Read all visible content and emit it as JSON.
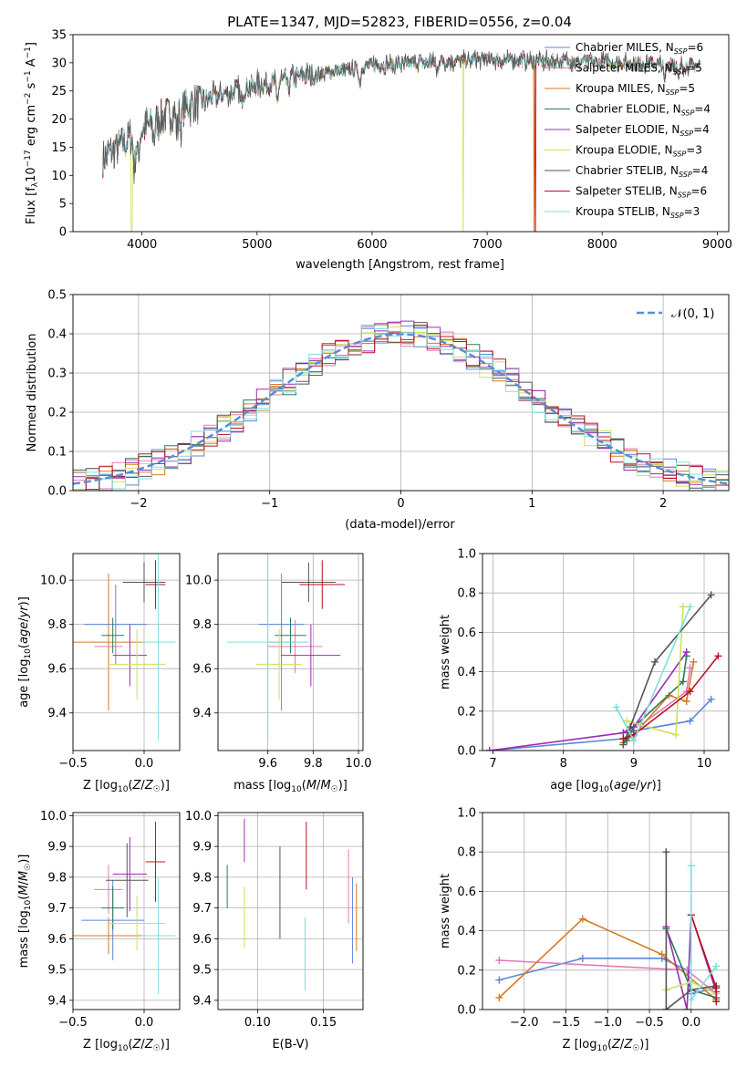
{
  "title": "PLATE=1347, MJD=52823, FIBERID=0556, z=0.04",
  "colors": {
    "Chabrier MILES": "#5b86d8",
    "Salpeter MILES": "#e27bb5",
    "Kroupa MILES": "#d97a22",
    "Chabrier ELODIE": "#2d7a5b",
    "Salpeter ELODIE": "#9b2db3",
    "Kroupa ELODIE": "#c9e35c",
    "Chabrier STELIB": "#555555",
    "Salpeter STELIB": "#bb1122",
    "Kroupa STELIB": "#80dede"
  },
  "chart_data": [
    {
      "id": "spectrum",
      "type": "line",
      "title": "PLATE=1347, MJD=52823, FIBERID=0556, z=0.04",
      "xlabel": "wavelength [Angstrom, rest frame]",
      "ylabel": "Flux [f_λ 10^-17 erg cm^-2 s^-1 A^-1]",
      "xlim": [
        3400,
        9100
      ],
      "ylim": [
        0,
        35
      ],
      "xticks": [
        4000,
        5000,
        6000,
        7000,
        8000,
        9000
      ],
      "yticks": [
        0,
        5,
        10,
        15,
        20,
        25,
        30,
        35
      ],
      "grid": false,
      "legend_position": "top-right",
      "legend": [
        {
          "model": "Chabrier MILES",
          "prefix": "Chabrier MILES, N",
          "nssp": "6"
        },
        {
          "model": "Salpeter MILES",
          "prefix": "Salpeter MILES, N",
          "nssp": "5"
        },
        {
          "model": "Kroupa MILES",
          "prefix": "Kroupa MILES, N",
          "nssp": "5"
        },
        {
          "model": "Chabrier ELODIE",
          "prefix": "Chabrier ELODIE, N",
          "nssp": "4"
        },
        {
          "model": "Salpeter ELODIE",
          "prefix": "Salpeter ELODIE, N",
          "nssp": "4"
        },
        {
          "model": "Kroupa ELODIE",
          "prefix": "Kroupa ELODIE, N",
          "nssp": "3"
        },
        {
          "model": "Chabrier STELIB",
          "prefix": "Chabrier STELIB, N",
          "nssp": "4"
        },
        {
          "model": "Salpeter STELIB",
          "prefix": "Salpeter STELIB, N",
          "nssp": "6"
        },
        {
          "model": "Kroupa STELIB",
          "prefix": "Kroupa STELIB, N",
          "nssp": "3"
        }
      ],
      "continuum": [
        [
          3660,
          13
        ],
        [
          3800,
          15
        ],
        [
          3950,
          17.5
        ],
        [
          4150,
          20
        ],
        [
          4400,
          22.5
        ],
        [
          4700,
          24.5
        ],
        [
          5000,
          26
        ],
        [
          5300,
          27.2
        ],
        [
          5600,
          28.2
        ],
        [
          6000,
          29.5
        ],
        [
          6500,
          30.2
        ],
        [
          7000,
          30.5
        ],
        [
          7500,
          30.3
        ],
        [
          8000,
          30.1
        ],
        [
          8500,
          29.8
        ],
        [
          8850,
          29.5
        ]
      ],
      "absorption_features": [
        [
          3934,
          -6
        ],
        [
          3968,
          -5
        ],
        [
          4102,
          -3
        ],
        [
          4304,
          -4
        ],
        [
          4340,
          -3
        ],
        [
          4861,
          -3
        ],
        [
          5175,
          -4
        ],
        [
          5270,
          -2
        ],
        [
          5893,
          -3
        ],
        [
          6563,
          -2
        ],
        [
          8542,
          -3
        ],
        [
          8662,
          -3
        ]
      ],
      "model_drops": [
        {
          "model": "Kroupa ELODIE",
          "x": 3910
        },
        {
          "model": "Kroupa ELODIE",
          "x": 6790
        },
        {
          "model": "Kroupa MILES",
          "x": 7410
        },
        {
          "model": "Salpeter STELIB",
          "x": 7420
        }
      ]
    },
    {
      "id": "residuals",
      "type": "histogram",
      "xlabel": "(data-model)/error",
      "ylabel": "Normed distribution",
      "xlim": [
        -2.5,
        2.5
      ],
      "ylim": [
        0,
        0.5
      ],
      "xticks": [
        -2,
        -1,
        0,
        1,
        2
      ],
      "yticks": [
        0,
        0.1,
        0.2,
        0.3,
        0.4,
        0.5
      ],
      "grid": true,
      "bin_edges_start": -2.5,
      "bin_width": 0.1,
      "reference_curve": {
        "label": "𝒩(0, 1)",
        "mean": 0,
        "sigma": 1,
        "color": "#5b8bd6"
      },
      "legend_position": "top-right"
    },
    {
      "id": "age_vs_Z",
      "type": "errorbar",
      "xlabel": "Z [log10(Z/Z☉)]",
      "ylabel": "age  [log10(age/yr)]",
      "xlim": [
        -0.5,
        0.25
      ],
      "ylim": [
        9.23,
        10.12
      ],
      "xticks": [
        -0.5,
        0.0
      ],
      "yticks": [
        9.4,
        9.6,
        9.8,
        10.0
      ],
      "grid": true,
      "points": [
        {
          "model": "Chabrier MILES",
          "x": -0.2,
          "xerr": 0.22,
          "y": 9.8,
          "yerr": 0.18
        },
        {
          "model": "Salpeter MILES",
          "x": -0.25,
          "xerr": 0.1,
          "y": 9.7,
          "yerr": 0.12
        },
        {
          "model": "Kroupa MILES",
          "x": -0.25,
          "xerr": 0.25,
          "y": 9.72,
          "yerr": 0.31
        },
        {
          "model": "Chabrier ELODIE",
          "x": -0.22,
          "xerr": 0.08,
          "y": 9.75,
          "yerr": 0.08
        },
        {
          "model": "Salpeter ELODIE",
          "x": -0.1,
          "xerr": 0.12,
          "y": 9.66,
          "yerr": 0.14
        },
        {
          "model": "Kroupa ELODIE",
          "x": -0.05,
          "xerr": 0.2,
          "y": 9.62,
          "yerr": 0.16
        },
        {
          "model": "Chabrier STELIB",
          "x": 0.0,
          "xerr": 0.15,
          "y": 9.99,
          "yerr": 0.09
        },
        {
          "model": "Salpeter STELIB",
          "x": 0.08,
          "xerr": 0.07,
          "y": 9.98,
          "yerr": 0.11
        },
        {
          "model": "Kroupa STELIB",
          "x": 0.1,
          "xerr": 0.12,
          "y": 9.72,
          "yerr": 0.44
        }
      ]
    },
    {
      "id": "age_vs_mass",
      "type": "errorbar",
      "xlabel": "mass [log10(M/M☉)]",
      "ylabel": "",
      "xlim": [
        9.38,
        10.02
      ],
      "ylim": [
        9.23,
        10.12
      ],
      "xticks": [
        9.6,
        9.8,
        10.0
      ],
      "yticks": [
        9.4,
        9.6,
        9.8,
        10.0
      ],
      "grid": true,
      "points": [
        {
          "model": "Chabrier MILES",
          "x": 9.66,
          "xerr": 0.1,
          "y": 9.8,
          "yerr": 0.18
        },
        {
          "model": "Salpeter MILES",
          "x": 9.72,
          "xerr": 0.12,
          "y": 9.7,
          "yerr": 0.12
        },
        {
          "model": "Kroupa MILES",
          "x": 9.66,
          "xerr": 0.06,
          "y": 9.72,
          "yerr": 0.31
        },
        {
          "model": "Chabrier ELODIE",
          "x": 9.7,
          "xerr": 0.07,
          "y": 9.75,
          "yerr": 0.08
        },
        {
          "model": "Salpeter ELODIE",
          "x": 9.79,
          "xerr": 0.13,
          "y": 9.66,
          "yerr": 0.14
        },
        {
          "model": "Kroupa ELODIE",
          "x": 9.65,
          "xerr": 0.1,
          "y": 9.62,
          "yerr": 0.16
        },
        {
          "model": "Chabrier STELIB",
          "x": 9.78,
          "xerr": 0.12,
          "y": 9.99,
          "yerr": 0.09
        },
        {
          "model": "Salpeter STELIB",
          "x": 9.84,
          "xerr": 0.1,
          "y": 9.98,
          "yerr": 0.11
        },
        {
          "model": "Kroupa STELIB",
          "x": 9.6,
          "xerr": 0.18,
          "y": 9.72,
          "yerr": 0.44
        }
      ]
    },
    {
      "id": "weight_vs_age",
      "type": "line",
      "xlabel": "age  [log10(age/yr)]",
      "ylabel": "mass weight",
      "xlim": [
        6.85,
        10.35
      ],
      "ylim": [
        0,
        1.0
      ],
      "xticks": [
        7,
        8,
        9,
        10
      ],
      "yticks": [
        0.0,
        0.2,
        0.4,
        0.6,
        0.8,
        1.0
      ],
      "grid": true,
      "series": [
        {
          "model": "Chabrier MILES",
          "x": [
            6.95,
            8.85,
            9.0,
            9.8,
            10.1
          ],
          "y": [
            0.0,
            0.06,
            0.1,
            0.15,
            0.26
          ]
        },
        {
          "model": "Salpeter MILES",
          "x": [
            8.9,
            9.0,
            9.1,
            9.75,
            9.8
          ],
          "y": [
            0.1,
            0.05,
            0.13,
            0.3,
            0.42
          ]
        },
        {
          "model": "Kroupa MILES",
          "x": [
            8.85,
            9.0,
            9.5,
            9.75,
            9.85
          ],
          "y": [
            0.04,
            0.08,
            0.28,
            0.25,
            0.45
          ]
        },
        {
          "model": "Chabrier ELODIE",
          "x": [
            8.9,
            9.0,
            9.7,
            9.75
          ],
          "y": [
            0.05,
            0.12,
            0.35,
            0.48
          ]
        },
        {
          "model": "Salpeter ELODIE",
          "x": [
            6.95,
            8.85,
            9.0,
            9.75
          ],
          "y": [
            0.0,
            0.09,
            0.12,
            0.5
          ]
        },
        {
          "model": "Kroupa ELODIE",
          "x": [
            8.9,
            9.6,
            9.7
          ],
          "y": [
            0.15,
            0.08,
            0.73
          ]
        },
        {
          "model": "Chabrier STELIB",
          "x": [
            8.85,
            8.95,
            9.3,
            10.1
          ],
          "y": [
            0.03,
            0.12,
            0.45,
            0.79
          ]
        },
        {
          "model": "Salpeter STELIB",
          "x": [
            8.85,
            9.0,
            9.8,
            10.2
          ],
          "y": [
            0.06,
            0.08,
            0.3,
            0.48
          ]
        },
        {
          "model": "Kroupa STELIB",
          "x": [
            8.75,
            9.0,
            9.8
          ],
          "y": [
            0.22,
            0.05,
            0.73
          ]
        }
      ]
    },
    {
      "id": "mass_vs_Z",
      "type": "errorbar",
      "xlabel": "Z [log10(Z/Z☉)]",
      "ylabel": "mass [log10(M/M☉)]",
      "xlim": [
        -0.5,
        0.25
      ],
      "ylim": [
        9.37,
        10.01
      ],
      "xticks": [
        -0.5,
        0.0
      ],
      "yticks": [
        9.4,
        9.5,
        9.6,
        9.7,
        9.8,
        9.9,
        10.0
      ],
      "grid": true,
      "points": [
        {
          "model": "Chabrier MILES",
          "x": -0.22,
          "xerr": 0.22,
          "y": 9.66,
          "yerr": 0.13
        },
        {
          "model": "Salpeter MILES",
          "x": -0.25,
          "xerr": 0.1,
          "y": 9.76,
          "yerr": 0.08
        },
        {
          "model": "Kroupa MILES",
          "x": -0.25,
          "xerr": 0.25,
          "y": 9.61,
          "yerr": 0.06
        },
        {
          "model": "Chabrier ELODIE",
          "x": -0.22,
          "xerr": 0.08,
          "y": 9.7,
          "yerr": 0.07
        },
        {
          "model": "Salpeter ELODIE",
          "x": -0.1,
          "xerr": 0.12,
          "y": 9.81,
          "yerr": 0.12
        },
        {
          "model": "Kroupa ELODIE",
          "x": -0.05,
          "xerr": 0.2,
          "y": 9.65,
          "yerr": 0.09
        },
        {
          "model": "Chabrier STELIB",
          "x": -0.12,
          "xerr": 0.15,
          "y": 9.79,
          "yerr": 0.12
        },
        {
          "model": "Salpeter STELIB",
          "x": 0.08,
          "xerr": 0.07,
          "y": 9.85,
          "yerr": 0.13
        },
        {
          "model": "Kroupa STELIB",
          "x": 0.1,
          "xerr": 0.12,
          "y": 9.61,
          "yerr": 0.19
        }
      ]
    },
    {
      "id": "mass_vs_ebv",
      "type": "errorbar",
      "xlabel": "E(B-V)",
      "ylabel": "",
      "xlim": [
        0.07,
        0.18
      ],
      "ylim": [
        9.37,
        10.01
      ],
      "xticks": [
        0.1,
        0.15
      ],
      "yticks": [
        9.4,
        9.5,
        9.6,
        9.7,
        9.8,
        9.9,
        10.0
      ],
      "grid": true,
      "points": [
        {
          "model": "Chabrier MILES",
          "x": 0.172,
          "xerr": 0,
          "y": 9.66,
          "yerr": 0.14
        },
        {
          "model": "Salpeter MILES",
          "x": 0.169,
          "xerr": 0,
          "y": 9.77,
          "yerr": 0.12
        },
        {
          "model": "Kroupa MILES",
          "x": 0.175,
          "xerr": 0,
          "y": 9.67,
          "yerr": 0.11
        },
        {
          "model": "Chabrier ELODIE",
          "x": 0.077,
          "xerr": 0,
          "y": 9.77,
          "yerr": 0.07
        },
        {
          "model": "Salpeter ELODIE",
          "x": 0.09,
          "xerr": 0,
          "y": 9.92,
          "yerr": 0.07
        },
        {
          "model": "Kroupa ELODIE",
          "x": 0.09,
          "xerr": 0,
          "y": 9.67,
          "yerr": 0.1
        },
        {
          "model": "Chabrier STELIB",
          "x": 0.117,
          "xerr": 0,
          "y": 9.75,
          "yerr": 0.15
        },
        {
          "model": "Salpeter STELIB",
          "x": 0.137,
          "xerr": 0,
          "y": 9.87,
          "yerr": 0.11
        },
        {
          "model": "Kroupa STELIB",
          "x": 0.136,
          "xerr": 0,
          "y": 9.55,
          "yerr": 0.12
        }
      ]
    },
    {
      "id": "weight_vs_Z",
      "type": "line",
      "xlabel": "Z [log10(Z/Z☉)]",
      "ylabel": "mass weight",
      "xlim": [
        -2.5,
        0.45
      ],
      "ylim": [
        0,
        1.0
      ],
      "xticks": [
        -2.0,
        -1.5,
        -1.0,
        -0.5,
        0.0
      ],
      "yticks": [
        0.0,
        0.2,
        0.4,
        0.6,
        0.8,
        1.0
      ],
      "grid": true,
      "series": [
        {
          "model": "Chabrier MILES",
          "x": [
            -2.3,
            -1.3,
            -0.35,
            -0.05,
            0.0,
            0.3
          ],
          "y": [
            0.15,
            0.26,
            0.26,
            0.2,
            0.08,
            0.11
          ]
        },
        {
          "model": "Salpeter MILES",
          "x": [
            -2.3,
            -0.05,
            0.3
          ],
          "y": [
            0.25,
            0.2,
            0.08
          ]
        },
        {
          "model": "Kroupa MILES",
          "x": [
            -2.3,
            -1.3,
            -0.35,
            0.3
          ],
          "y": [
            0.06,
            0.46,
            0.28,
            0.05
          ]
        },
        {
          "model": "Chabrier ELODIE",
          "x": [
            -0.3,
            0.0,
            0.3
          ],
          "y": [
            0.41,
            0.1,
            0.06
          ]
        },
        {
          "model": "Salpeter ELODIE",
          "x": [
            -0.3,
            -0.05,
            0.0,
            0.3
          ],
          "y": [
            0.42,
            0.0,
            0.48,
            0.09
          ]
        },
        {
          "model": "Kroupa ELODIE",
          "x": [
            -0.3,
            0.0,
            0.3
          ],
          "y": [
            0.1,
            0.14,
            0.08
          ]
        },
        {
          "model": "Chabrier STELIB",
          "x": [
            -0.3,
            -0.3,
            0.0,
            0.3
          ],
          "y": [
            0.8,
            0.0,
            0.1,
            0.12
          ]
        },
        {
          "model": "Salpeter STELIB",
          "x": [
            0.0,
            0.3,
            0.3
          ],
          "y": [
            0.48,
            0.11,
            0.04
          ]
        },
        {
          "model": "Kroupa STELIB",
          "x": [
            0.0,
            0.0,
            0.3
          ],
          "y": [
            0.73,
            0.05,
            0.22
          ]
        }
      ]
    }
  ]
}
